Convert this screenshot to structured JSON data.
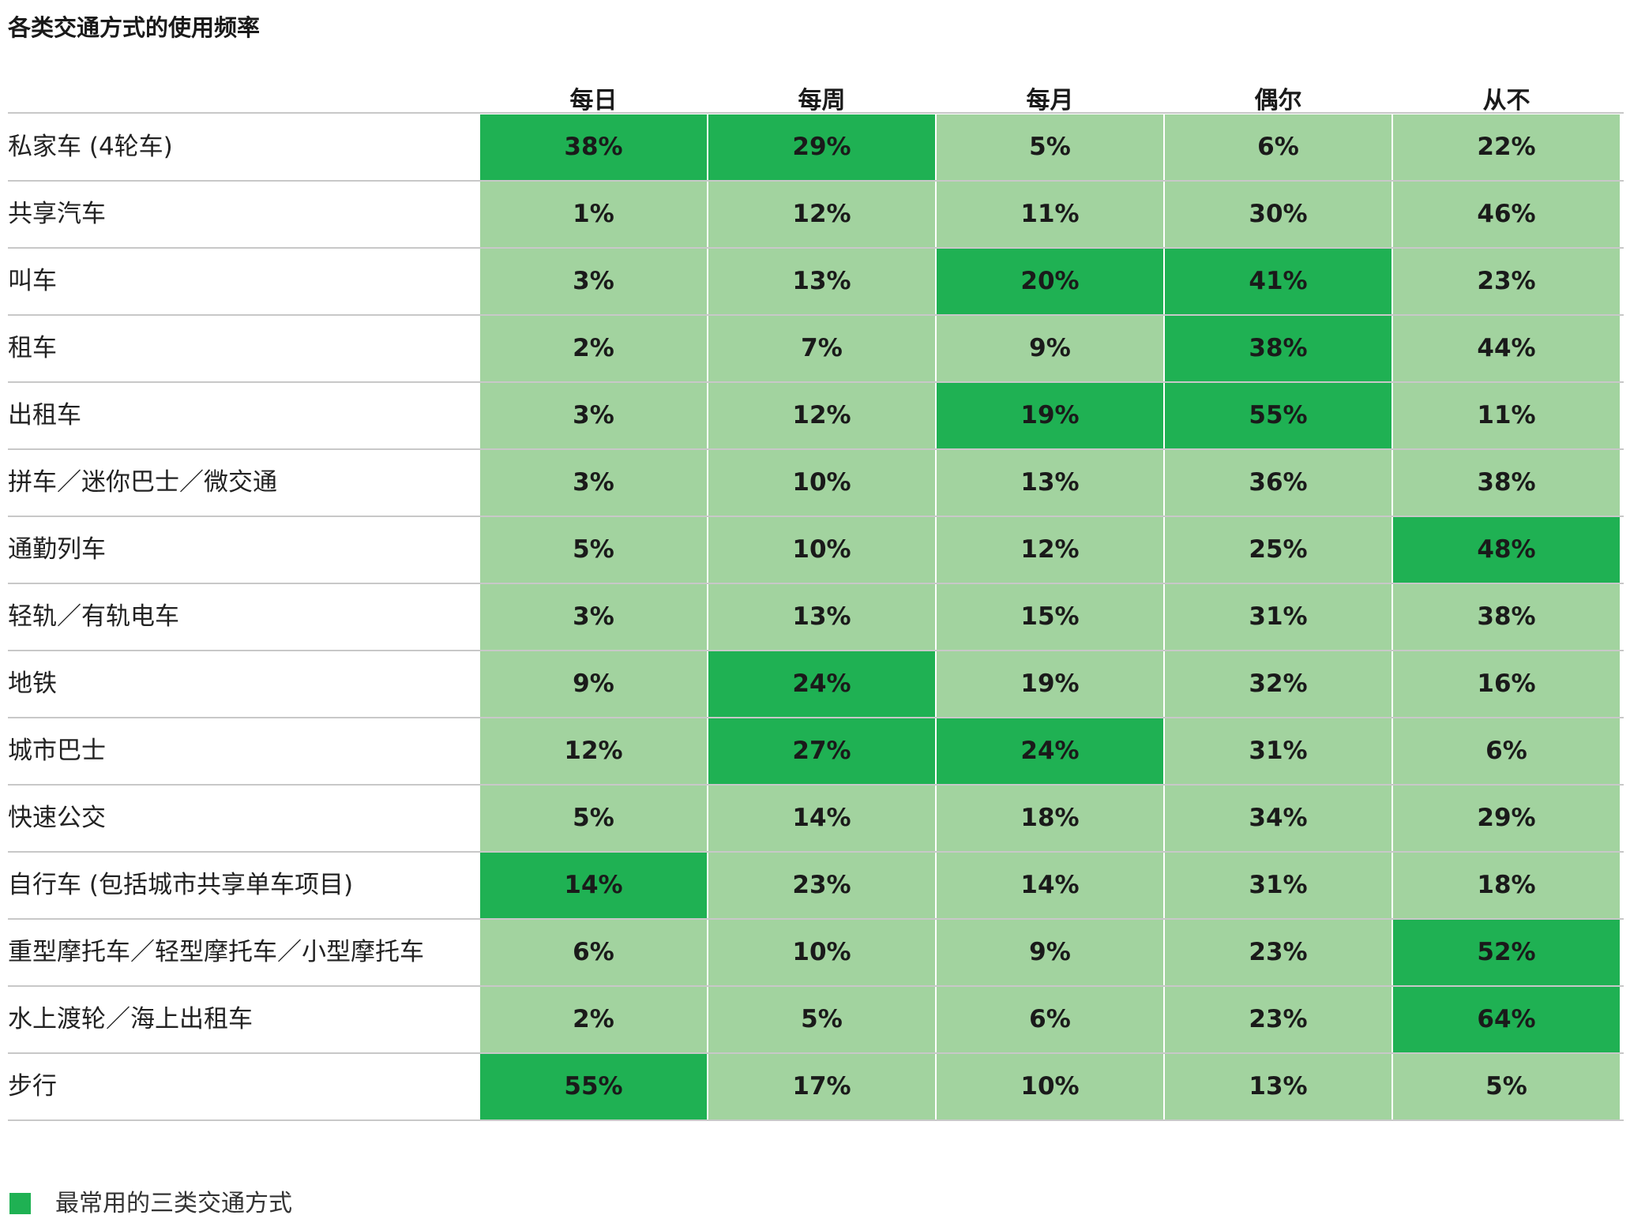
{
  "title": "各类交通方式的使用频率",
  "colors": {
    "highlight": "#1fb153",
    "normal": "#a2d39f"
  },
  "chart_data": {
    "type": "heatmap",
    "title": "各类交通方式的使用频率",
    "columns": [
      "每日",
      "每周",
      "每月",
      "偶尔",
      "从不"
    ],
    "rows": [
      {
        "label": "私家车 (4轮车)",
        "values": [
          "38%",
          "29%",
          "5%",
          "6%",
          "22%"
        ],
        "highlight": [
          true,
          true,
          false,
          false,
          false
        ]
      },
      {
        "label": "共享汽车",
        "values": [
          "1%",
          "12%",
          "11%",
          "30%",
          "46%"
        ],
        "highlight": [
          false,
          false,
          false,
          false,
          false
        ]
      },
      {
        "label": "叫车",
        "values": [
          "3%",
          "13%",
          "20%",
          "41%",
          "23%"
        ],
        "highlight": [
          false,
          false,
          true,
          true,
          false
        ]
      },
      {
        "label": "租车",
        "values": [
          "2%",
          "7%",
          "9%",
          "38%",
          "44%"
        ],
        "highlight": [
          false,
          false,
          false,
          true,
          false
        ]
      },
      {
        "label": "出租车",
        "values": [
          "3%",
          "12%",
          "19%",
          "55%",
          "11%"
        ],
        "highlight": [
          false,
          false,
          true,
          true,
          false
        ]
      },
      {
        "label": "拼车／迷你巴士／微交通",
        "values": [
          "3%",
          "10%",
          "13%",
          "36%",
          "38%"
        ],
        "highlight": [
          false,
          false,
          false,
          false,
          false
        ]
      },
      {
        "label": "通勤列车",
        "values": [
          "5%",
          "10%",
          "12%",
          "25%",
          "48%"
        ],
        "highlight": [
          false,
          false,
          false,
          false,
          true
        ]
      },
      {
        "label": "轻轨／有轨电车",
        "values": [
          "3%",
          "13%",
          "15%",
          "31%",
          "38%"
        ],
        "highlight": [
          false,
          false,
          false,
          false,
          false
        ]
      },
      {
        "label": "地铁",
        "values": [
          "9%",
          "24%",
          "19%",
          "32%",
          "16%"
        ],
        "highlight": [
          false,
          true,
          false,
          false,
          false
        ]
      },
      {
        "label": "城市巴士",
        "values": [
          "12%",
          "27%",
          "24%",
          "31%",
          "6%"
        ],
        "highlight": [
          false,
          true,
          true,
          false,
          false
        ]
      },
      {
        "label": "快速公交",
        "values": [
          "5%",
          "14%",
          "18%",
          "34%",
          "29%"
        ],
        "highlight": [
          false,
          false,
          false,
          false,
          false
        ]
      },
      {
        "label": "自行车 (包括城市共享单车项目)",
        "values": [
          "14%",
          "23%",
          "14%",
          "31%",
          "18%"
        ],
        "highlight": [
          true,
          false,
          false,
          false,
          false
        ]
      },
      {
        "label": "重型摩托车／轻型摩托车／小型摩托车",
        "values": [
          "6%",
          "10%",
          "9%",
          "23%",
          "52%"
        ],
        "highlight": [
          false,
          false,
          false,
          false,
          true
        ]
      },
      {
        "label": "水上渡轮／海上出租车",
        "values": [
          "2%",
          "5%",
          "6%",
          "23%",
          "64%"
        ],
        "highlight": [
          false,
          false,
          false,
          false,
          true
        ]
      },
      {
        "label": "步行",
        "values": [
          "55%",
          "17%",
          "10%",
          "13%",
          "5%"
        ],
        "highlight": [
          true,
          false,
          false,
          false,
          false
        ]
      }
    ],
    "legend": "最常用的三类交通方式"
  }
}
